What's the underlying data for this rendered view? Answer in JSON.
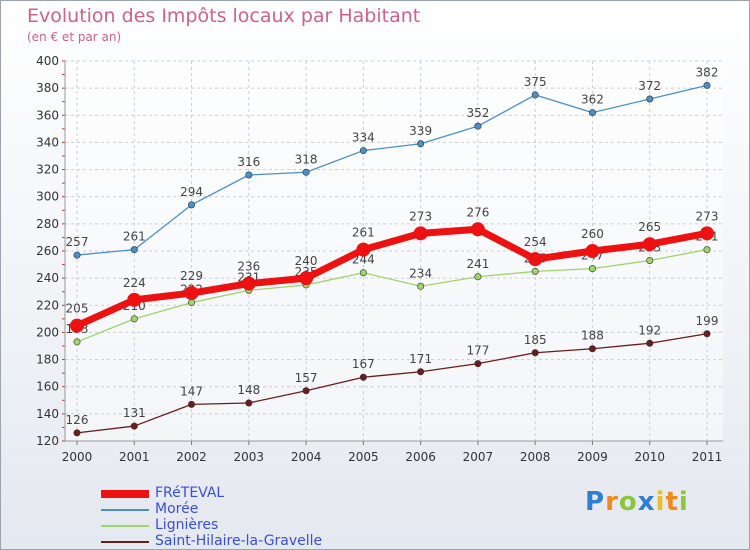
{
  "header": {
    "title": "Evolution des Impôts locaux par Habitant",
    "subtitle": "(en € et par an)"
  },
  "logo": {
    "text": "Proxiti"
  },
  "chart_data": {
    "type": "line",
    "title": "Evolution des Impôts locaux par Habitant",
    "subtitle": "(en € et par an)",
    "xlabel": "",
    "ylabel": "",
    "ylim": [
      120,
      400
    ],
    "yticks": [
      120,
      140,
      160,
      180,
      200,
      220,
      240,
      260,
      280,
      300,
      320,
      340,
      360,
      380,
      400
    ],
    "x": [
      "2000",
      "2001",
      "2002",
      "2003",
      "2004",
      "2005",
      "2006",
      "2007",
      "2008",
      "2009",
      "2010",
      "2011"
    ],
    "grid": true,
    "legend": "bottom-left",
    "series": [
      {
        "name": "Saint-Hilaire-la-Gravelle",
        "color": "#6b1c1c",
        "values": [
          126,
          131,
          147,
          148,
          157,
          167,
          171,
          177,
          185,
          188,
          192,
          199
        ]
      },
      {
        "name": "Lignières",
        "color": "#9fd46a",
        "values": [
          193,
          210,
          222,
          231,
          235,
          244,
          234,
          241,
          245,
          247,
          253,
          261
        ]
      },
      {
        "name": "Morée",
        "color": "#4a90c8",
        "values": [
          257,
          261,
          294,
          316,
          318,
          334,
          339,
          352,
          375,
          362,
          372,
          382
        ]
      },
      {
        "name": "FRéTEVAL",
        "color": "#ee1111",
        "values": [
          205,
          224,
          229,
          236,
          240,
          261,
          273,
          276,
          254,
          260,
          265,
          273
        ]
      }
    ]
  }
}
